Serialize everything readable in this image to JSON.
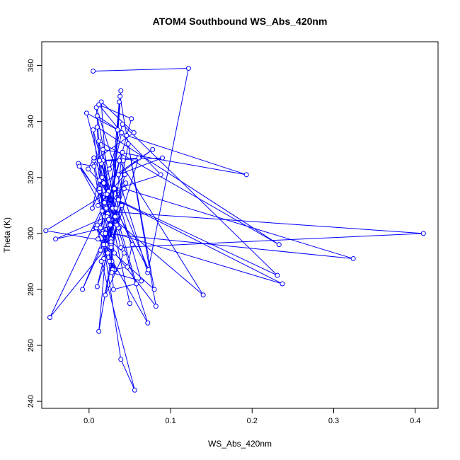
{
  "chart_data": {
    "type": "line",
    "markers": "open-circle",
    "title": "ATOM4 Southbound WS_Abs_420nm",
    "xlabel": "WS_Abs_420nm",
    "ylabel": "Theta (K)",
    "xlim": [
      -0.058,
      0.428
    ],
    "ylim": [
      237.5,
      368.5
    ],
    "xticks": [
      0.0,
      0.1,
      0.2,
      0.3,
      0.4
    ],
    "xtick_labels": [
      "0.0",
      "0.1",
      "0.2",
      "0.3",
      "0.4"
    ],
    "yticks": [
      240,
      260,
      280,
      300,
      320,
      340,
      360
    ],
    "yticks_labels": [
      "240",
      "260",
      "280",
      "300",
      "320",
      "340",
      "360"
    ],
    "grid": false,
    "colors": {
      "series": "#0000ff",
      "axis": "#000000",
      "background": "#ffffff"
    },
    "series": [
      {
        "name": "ATOM4 Southbound",
        "x": [
          0.005,
          0.122,
          0.072,
          0.009,
          0.021,
          0.032,
          0.006,
          0.055,
          0.015,
          0.027,
          0.028,
          0.02,
          0.043,
          0.008,
          0.082,
          0.038,
          0.025,
          0.031,
          0.014,
          0.04,
          0.012,
          0.052,
          0.019,
          0.005,
          0.037,
          0.01,
          0.046,
          0.193,
          0.017,
          0.029,
          0.047,
          0.053,
          0.006,
          -0.001,
          0.024,
          0.088,
          0.035,
          -0.003,
          0.039,
          0.41,
          0.016,
          0.01,
          0.233,
          0.012,
          0.036,
          0.042,
          0.017,
          0.004,
          0.025,
          0.041,
          0.231,
          0.013,
          0.013,
          0.073,
          0.032,
          0.036,
          0.064,
          0.028,
          0.009,
          0.237,
          0.02,
          0.043,
          0.324,
          0.017,
          0.031,
          0.023,
          0.14,
          0.037,
          0.011,
          0.08,
          0.048,
          0.027,
          0.041,
          0.016,
          0.072,
          0.023,
          0.006,
          -0.013,
          0.019,
          -0.048,
          0.027,
          -0.053,
          0.031,
          0.011,
          0.044,
          0.018,
          0.01,
          0.034,
          -0.041,
          0.022,
          0.03,
          0.058,
          0.015,
          0.034,
          0.012,
          0.037,
          0.029,
          0.039,
          0.026,
          0.013,
          0.021,
          0.045,
          0.015,
          0.056,
          0.039,
          0.018,
          0.033,
          0.022,
          0.01,
          0.024,
          -0.012,
          0.032,
          -0.008,
          0.02,
          0.014,
          0.04,
          0.027,
          0.061,
          0.013,
          0.09,
          0.036,
          0.078,
          0.018,
          0.05
        ],
        "y": [
          358,
          359,
          286,
          345,
          296,
          287,
          326,
          336,
          347,
          296,
          290,
          278,
          293,
          302,
          274,
          349,
          290,
          287,
          302,
          336,
          346,
          341,
          306,
          337,
          302,
          342,
          335,
          321,
          330,
          287,
          288,
          296,
          327,
          323,
          315,
          321,
          337,
          343,
          295,
          300,
          308,
          338,
          296,
          333,
          302,
          326,
          326,
          309,
          323,
          339,
          285,
          315,
          319,
          287,
          316,
          312,
          283,
          286,
          302,
          282,
          314,
          316,
          291,
          300,
          293,
          307,
          278,
          326,
          298,
          280,
          332,
          298,
          329,
          320,
          268,
          293,
          324,
          325,
          311,
          270,
          297,
          301,
          316,
          310,
          321,
          291,
          281,
          303,
          298,
          306,
          280,
          282,
          325,
          303,
          265,
          347,
          309,
          351,
          303,
          316,
          309,
          318,
          290,
          244,
          255,
          296,
          309,
          314,
          303,
          305,
          324,
          306,
          280,
          300,
          294,
          310,
          295,
          327,
          326,
          327,
          321,
          330,
          318,
          275
        ]
      }
    ]
  }
}
